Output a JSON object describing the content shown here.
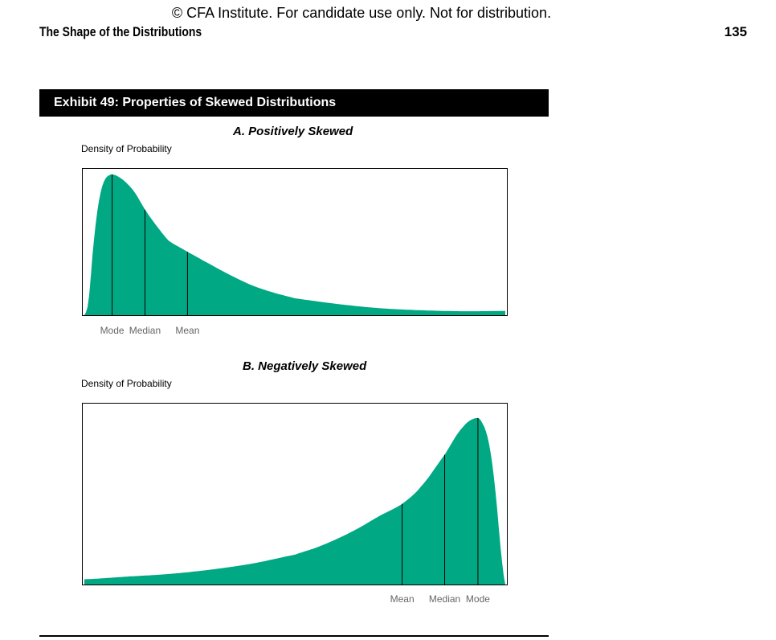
{
  "header": {
    "copyright": "© CFA Institute. For candidate use only. Not for distribution.",
    "section_title": "The Shape of the Distributions",
    "page_number": "135"
  },
  "exhibit": {
    "title": "Exhibit 49: Properties of Skewed Distributions"
  },
  "colors": {
    "fill": "#00a884",
    "line": "#000000",
    "label_gray": "#666666"
  },
  "chart_data": [
    {
      "type": "area",
      "title": "A. Positively Skewed",
      "ylabel": "Density of Probability",
      "xlabel": "",
      "grid": false,
      "markers": [
        {
          "label": "Mode",
          "x": 0.066
        },
        {
          "label": "Median",
          "x": 0.144
        },
        {
          "label": "Mean",
          "x": 0.245
        }
      ],
      "x": [
        0.0,
        0.01,
        0.02,
        0.03,
        0.04,
        0.05,
        0.06,
        0.066,
        0.08,
        0.1,
        0.12,
        0.144,
        0.17,
        0.2,
        0.245,
        0.3,
        0.35,
        0.4,
        0.45,
        0.5,
        0.6,
        0.7,
        0.8,
        0.9,
        1.0
      ],
      "y": [
        0.0,
        0.1,
        0.45,
        0.72,
        0.89,
        0.97,
        0.995,
        1.0,
        0.985,
        0.94,
        0.87,
        0.75,
        0.64,
        0.53,
        0.45,
        0.36,
        0.28,
        0.21,
        0.16,
        0.12,
        0.08,
        0.05,
        0.035,
        0.028,
        0.03
      ],
      "ylim": [
        0,
        1
      ]
    },
    {
      "type": "area",
      "title": "B. Negatively Skewed",
      "ylabel": "Density of Probability",
      "xlabel": "",
      "grid": false,
      "markers": [
        {
          "label": "Mean",
          "x": 0.755
        },
        {
          "label": "Median",
          "x": 0.856
        },
        {
          "label": "Mode",
          "x": 0.935
        }
      ],
      "x": [
        0.0,
        0.1,
        0.2,
        0.3,
        0.4,
        0.5,
        0.55,
        0.6,
        0.65,
        0.7,
        0.755,
        0.8,
        0.856,
        0.9,
        0.935,
        0.95,
        0.96,
        0.97,
        0.98,
        0.99,
        1.0
      ],
      "y": [
        0.03,
        0.045,
        0.06,
        0.085,
        0.12,
        0.17,
        0.21,
        0.26,
        0.32,
        0.39,
        0.46,
        0.56,
        0.74,
        0.9,
        0.95,
        0.9,
        0.82,
        0.67,
        0.45,
        0.18,
        0.0
      ],
      "ylim": [
        0,
        1
      ]
    }
  ]
}
